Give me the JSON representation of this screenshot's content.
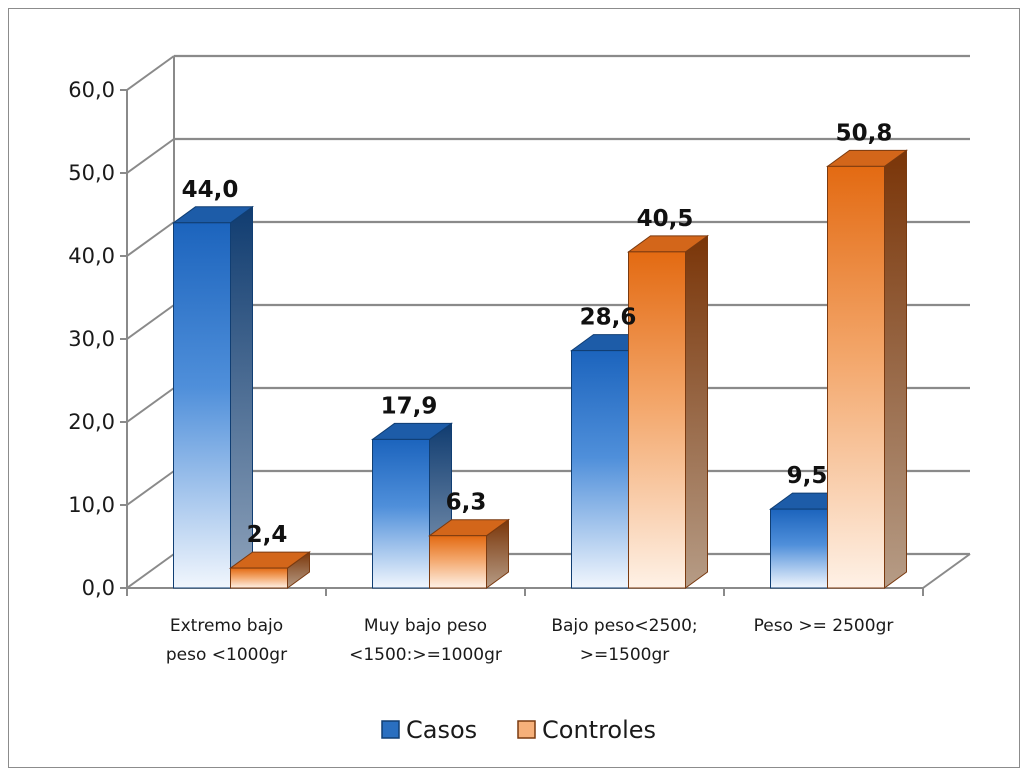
{
  "chart_data": {
    "type": "bar",
    "categories": [
      [
        "Extremo bajo",
        "peso <1000gr"
      ],
      [
        "Muy bajo peso",
        "<1500:>=1000gr"
      ],
      [
        "Bajo peso<2500;",
        ">=1500gr"
      ],
      [
        "Peso >= 2500gr"
      ]
    ],
    "series": [
      {
        "name": "Casos",
        "values": [
          44.0,
          17.9,
          28.6,
          9.5
        ],
        "labels": [
          "44,0",
          "17,9",
          "28,6",
          "9,5"
        ],
        "color": "#1f6fc4"
      },
      {
        "name": "Controles",
        "values": [
          2.4,
          6.3,
          40.5,
          50.8
        ],
        "labels": [
          "2,4",
          "6,3",
          "40,5",
          "50,8"
        ],
        "color": "#e8761f"
      }
    ],
    "ylim": [
      0,
      60
    ],
    "yticks": [
      "0,0",
      "10,0",
      "20,0",
      "30,0",
      "40,0",
      "50,0",
      "60,0"
    ],
    "grid": true,
    "legend": "bottom",
    "style": "3d-clustered-column"
  }
}
